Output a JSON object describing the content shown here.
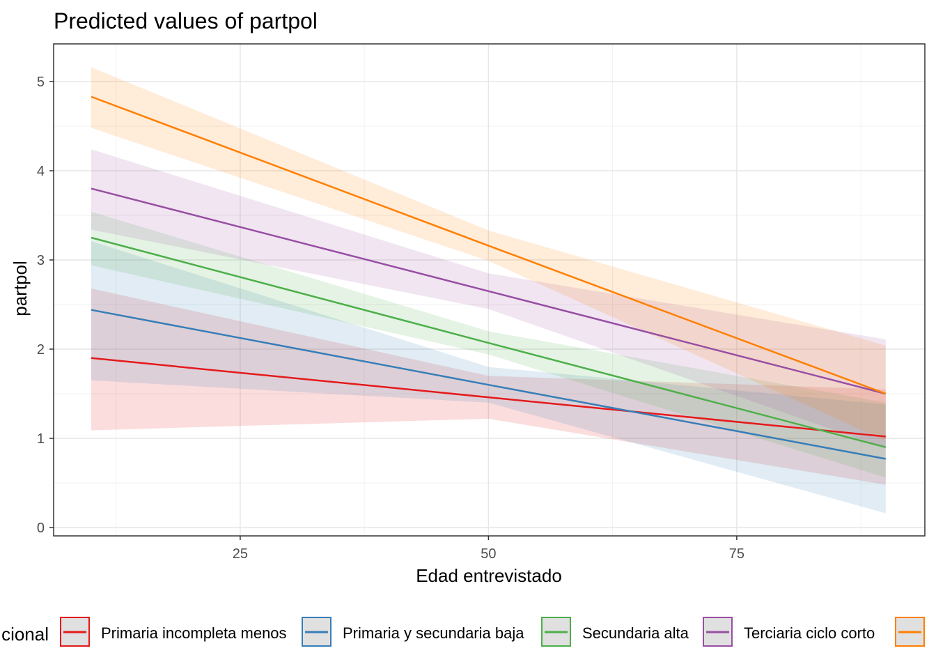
{
  "chart_data": {
    "type": "line",
    "title": "Predicted values of partpol",
    "xlabel": "Edad entrevistado",
    "ylabel": "partpol",
    "xlim": [
      5,
      95
    ],
    "ylim": [
      -0.1,
      5.4
    ],
    "xticks": [
      25,
      50,
      75
    ],
    "yticks": [
      0,
      1,
      2,
      3,
      4,
      5
    ],
    "grid": true,
    "legend_position": "bottom",
    "legend_title": "cional",
    "x": [
      10,
      50,
      90
    ],
    "series": [
      {
        "name": "Primaria incompleta menos",
        "color": "#E41A1C",
        "values": [
          1.9,
          1.46,
          1.02
        ],
        "lower": [
          1.09,
          1.22,
          0.48
        ],
        "upper": [
          2.68,
          1.7,
          1.55
        ]
      },
      {
        "name": "Primaria y secundaria baja",
        "color": "#377EB8",
        "values": [
          2.44,
          1.6,
          0.77
        ],
        "lower": [
          1.65,
          1.4,
          0.16
        ],
        "upper": [
          3.21,
          1.8,
          1.38
        ]
      },
      {
        "name": "Secundaria alta",
        "color": "#4DAF4A",
        "values": [
          3.25,
          2.07,
          0.9
        ],
        "lower": [
          2.94,
          1.94,
          0.56
        ],
        "upper": [
          3.54,
          2.2,
          1.4
        ]
      },
      {
        "name": "Terciaria ciclo corto",
        "color": "#984EA3",
        "values": [
          3.8,
          2.65,
          1.5
        ],
        "lower": [
          3.34,
          2.45,
          0.89
        ],
        "upper": [
          4.24,
          2.85,
          2.11
        ]
      },
      {
        "name": "",
        "color": "#FF7F00",
        "values": [
          4.83,
          3.16,
          1.5
        ],
        "lower": [
          4.48,
          2.99,
          0.97
        ],
        "upper": [
          5.16,
          3.33,
          2.04
        ]
      }
    ]
  }
}
